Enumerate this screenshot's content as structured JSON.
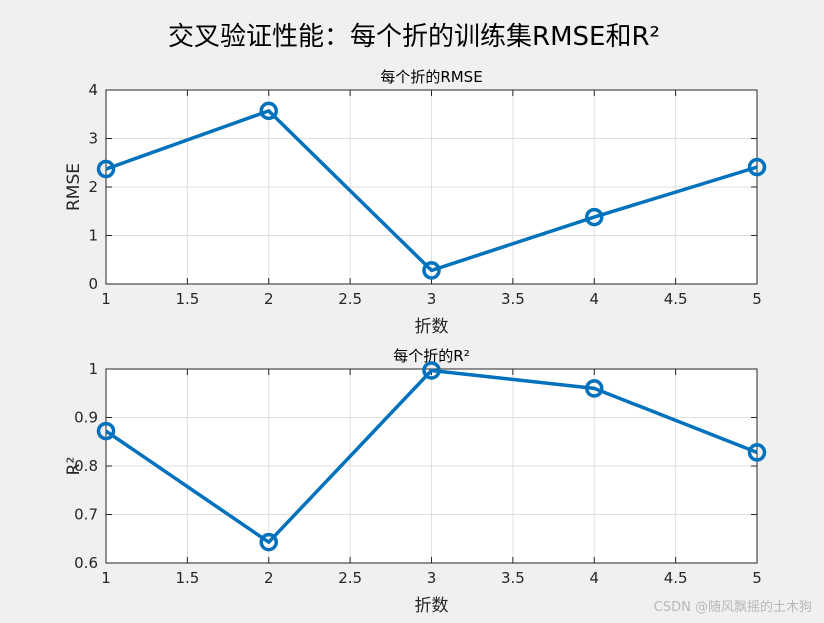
{
  "figure": {
    "suptitle": "交叉验证性能：每个折的训练集RMSE和R²",
    "watermark": "CSDN @随风飘摇的土木狗"
  },
  "colors": {
    "background": "#f0f0f0",
    "axes_face": "#ffffff",
    "series": "#0072bd",
    "grid": "#dfdfdf",
    "axis": "#262626"
  },
  "chart_data": [
    {
      "type": "line",
      "title": "每个折的RMSE",
      "xlabel": "折数",
      "ylabel": "RMSE",
      "x": [
        1,
        2,
        3,
        4,
        5
      ],
      "series": [
        {
          "values": [
            2.37,
            3.57,
            0.28,
            1.38,
            2.41
          ]
        }
      ],
      "xlim": [
        1,
        5
      ],
      "ylim": [
        0,
        4
      ],
      "xticks": [
        1,
        1.5,
        2,
        2.5,
        3,
        3.5,
        4,
        4.5,
        5
      ],
      "xtick_labels": [
        "1",
        "1.5",
        "2",
        "2.5",
        "3",
        "3.5",
        "4",
        "4.5",
        "5"
      ],
      "yticks": [
        0,
        1,
        2,
        3,
        4
      ],
      "ytick_labels": [
        "0",
        "1",
        "2",
        "3",
        "4"
      ],
      "grid": true,
      "marker": "circle"
    },
    {
      "type": "line",
      "title": "每个折的R²",
      "xlabel": "折数",
      "ylabel": "R²",
      "x": [
        1,
        2,
        3,
        4,
        5
      ],
      "series": [
        {
          "values": [
            0.872,
            0.643,
            0.997,
            0.96,
            0.828
          ]
        }
      ],
      "xlim": [
        1,
        5
      ],
      "ylim": [
        0.6,
        1
      ],
      "xticks": [
        1,
        1.5,
        2,
        2.5,
        3,
        3.5,
        4,
        4.5,
        5
      ],
      "xtick_labels": [
        "1",
        "1.5",
        "2",
        "2.5",
        "3",
        "3.5",
        "4",
        "4.5",
        "5"
      ],
      "yticks": [
        0.6,
        0.7,
        0.8,
        0.9,
        1
      ],
      "ytick_labels": [
        "0.6",
        "0.7",
        "0.8",
        "0.9",
        "1"
      ],
      "grid": true,
      "marker": "circle"
    }
  ]
}
